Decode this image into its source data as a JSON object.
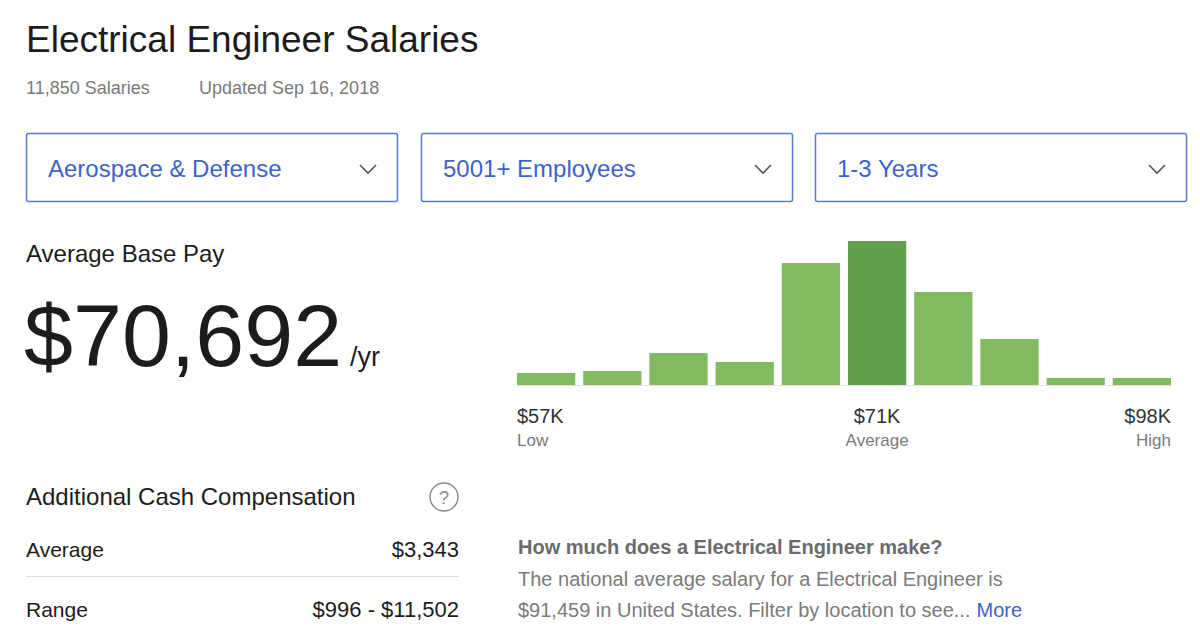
{
  "chart_data": {
    "type": "bar",
    "categories": [
      "$57K",
      null,
      null,
      null,
      null,
      "$71K",
      null,
      null,
      null,
      "$98K"
    ],
    "category_captions": [
      "Low",
      null,
      null,
      null,
      null,
      "Average",
      null,
      null,
      null,
      "High"
    ],
    "values": [
      12,
      14,
      32,
      23,
      122,
      144,
      93,
      46,
      7,
      7
    ],
    "colors": [
      "#81ba61",
      "#81ba61",
      "#81ba61",
      "#81ba61",
      "#81ba61",
      "#60a04c",
      "#81ba61",
      "#81ba61",
      "#81ba61",
      "#81ba61"
    ],
    "ylim": [
      0,
      144
    ],
    "tick_labels": "x"
  },
  "page": {
    "title": "Electrical Engineer Salaries",
    "salary_count": "11,850 Salaries",
    "updated": "Updated Sep 16, 2018",
    "filters": [
      "Aerospace & Defense",
      "5001+ Employees",
      "1-3 Years"
    ],
    "base_pay": {
      "label": "Average Base Pay",
      "amount": "$70,692",
      "unit": "/yr"
    },
    "additional": {
      "title": "Additional Cash Compensation",
      "help": "?",
      "rows": [
        [
          "Average",
          "$3,343"
        ],
        [
          "Range",
          "$996 - $11,502"
        ]
      ]
    },
    "faq": {
      "question": "How much does a Electrical Engineer make?",
      "lines": [
        "The national average salary for a Electrical Engineer is",
        "$91,459 in United States. Filter by location to see..."
      ],
      "link": "More"
    }
  }
}
